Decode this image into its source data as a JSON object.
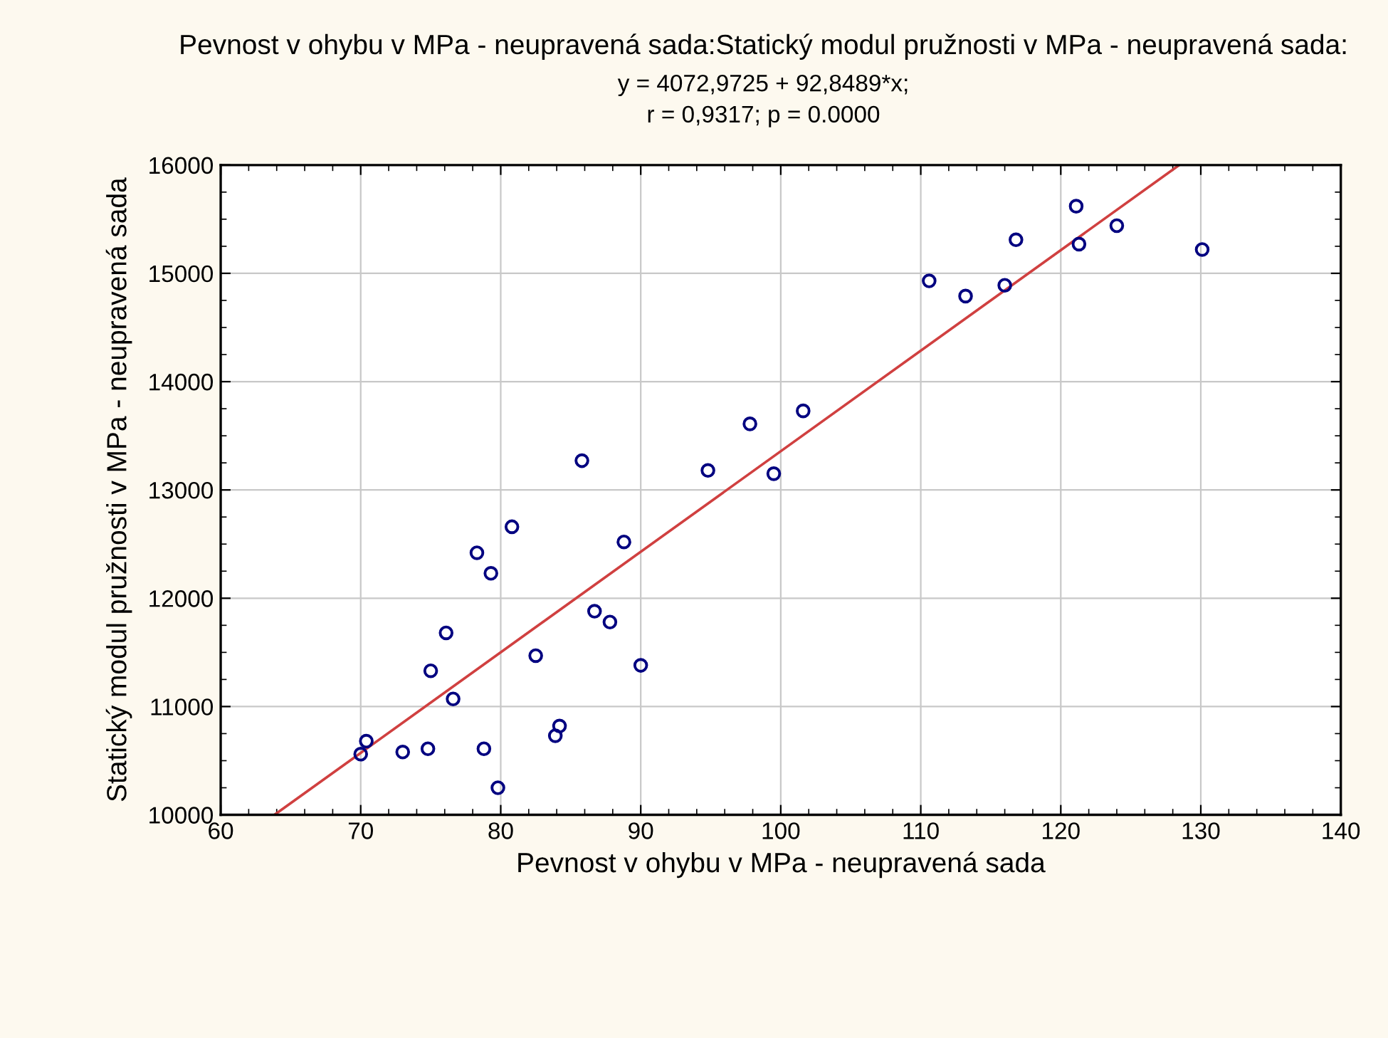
{
  "chart_data": {
    "type": "scatter",
    "title": "Pevnost v ohybu v MPa - neupravená sada:Statický modul pružnosti v MPa - neupravená sada:",
    "annotations": [
      "y = 4072,9725 + 92,8489*x;",
      "r = 0,9317; p = 0.0000"
    ],
    "xlabel": "Pevnost v ohybu v MPa - neupravená sada",
    "ylabel": "Statický modul pružnosti v MPa - neupravená sada",
    "xlim": [
      60,
      140
    ],
    "xticks": [
      60,
      70,
      80,
      90,
      100,
      110,
      120,
      130,
      140
    ],
    "ylim": [
      10000,
      16000
    ],
    "yticks": [
      10000,
      11000,
      12000,
      13000,
      14000,
      15000,
      16000
    ],
    "grid": true,
    "series": [
      {
        "marker": "circle",
        "color": "#000080",
        "x": [
          97.8,
          85.8,
          94.8,
          99.5,
          80.8,
          78.3,
          79.3,
          88.8,
          86.7,
          87.8,
          76.1,
          82.5,
          75.0,
          90.0,
          76.6,
          84.2,
          83.9,
          70.4,
          70.0,
          73.0,
          74.8,
          78.8,
          79.8,
          121.1,
          124.0,
          116.8,
          121.3,
          130.1,
          110.6,
          113.2,
          116.0,
          101.6
        ],
        "values": [
          13610,
          13270,
          13180,
          13150,
          12660,
          12420,
          12230,
          12520,
          11880,
          11780,
          11680,
          11470,
          11330,
          11380,
          11070,
          10820,
          10730,
          10680,
          10560,
          10580,
          10610,
          10610,
          10250,
          15620,
          15440,
          15310,
          15270,
          15220,
          14930,
          14790,
          14890,
          13730
        ]
      },
      {
        "type": "line",
        "marker": "none",
        "color": "#d04040",
        "x": [
          63.84,
          128.46
        ],
        "values": [
          10000,
          16000
        ]
      }
    ]
  }
}
